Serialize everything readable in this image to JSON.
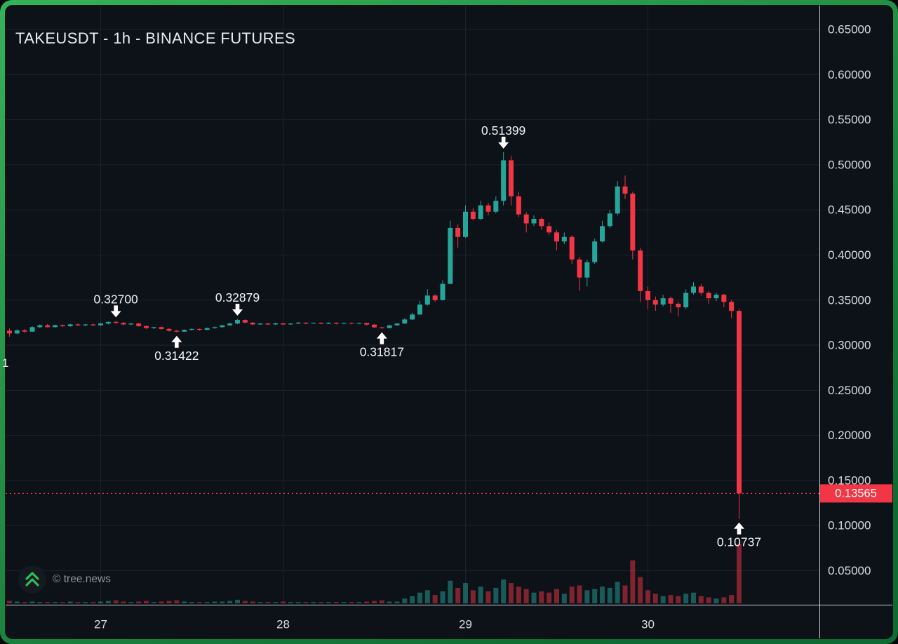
{
  "header": {
    "title": "TAKEUSDT - 1h - BINANCE FUTURES"
  },
  "watermark": {
    "text": "© tree.news",
    "icon": "tree-news-logo"
  },
  "left_edge_clipped_label": "1",
  "chart_data": {
    "type": "candlestick",
    "title": "TAKEUSDT - 1h - BINANCE FUTURES",
    "symbol": "TAKEUSDT",
    "interval": "1h",
    "exchange": "BINANCE FUTURES",
    "legend_position": "none",
    "grid": true,
    "colors": {
      "up": "#26a69a",
      "down": "#f23645",
      "last_price": "#f23645",
      "grid": "#1d222e",
      "axis_text": "#d7dae0",
      "axis_line": "#c9cdd5",
      "bg": "#0d1118",
      "annotation_text": "#f2f4f7",
      "frame_green_top": "#35b158",
      "frame_green_bottom": "#0d6c31"
    },
    "y_axis": {
      "min": 0.05,
      "max": 0.65,
      "tick_labels": [
        "0.65000",
        "0.60000",
        "0.55000",
        "0.50000",
        "0.45000",
        "0.40000",
        "0.35000",
        "0.30000",
        "0.25000",
        "0.20000",
        "0.15000",
        "0.10000",
        "0.05000"
      ]
    },
    "x_axis": {
      "tick_labels": [
        "27",
        "28",
        "29",
        "30"
      ],
      "tick_candle_indices": [
        12,
        36,
        60,
        84
      ]
    },
    "last_price": {
      "value": 0.13565,
      "label": "0.13565"
    },
    "annotations": [
      {
        "label": "0.32700",
        "price": 0.327,
        "candle": 14,
        "direction": "down"
      },
      {
        "label": "0.31422",
        "price": 0.31422,
        "candle": 22,
        "direction": "up"
      },
      {
        "label": "0.32879",
        "price": 0.32879,
        "candle": 30,
        "direction": "down"
      },
      {
        "label": "0.31817",
        "price": 0.31817,
        "candle": 49,
        "direction": "up"
      },
      {
        "label": "0.51399",
        "price": 0.51399,
        "candle": 65,
        "direction": "down"
      },
      {
        "label": "0.10737",
        "price": 0.10737,
        "candle": 96,
        "direction": "up"
      }
    ],
    "candles": [
      [
        0.316,
        0.3185,
        0.3095,
        0.313
      ],
      [
        0.313,
        0.3175,
        0.312,
        0.3165
      ],
      [
        0.3165,
        0.318,
        0.314,
        0.315
      ],
      [
        0.315,
        0.321,
        0.3145,
        0.32
      ],
      [
        0.32,
        0.323,
        0.319,
        0.322
      ],
      [
        0.322,
        0.3235,
        0.3195,
        0.32
      ],
      [
        0.32,
        0.3228,
        0.3195,
        0.3222
      ],
      [
        0.3222,
        0.323,
        0.32,
        0.321
      ],
      [
        0.321,
        0.3238,
        0.3205,
        0.323
      ],
      [
        0.323,
        0.324,
        0.321,
        0.322
      ],
      [
        0.322,
        0.3235,
        0.321,
        0.323
      ],
      [
        0.323,
        0.3238,
        0.3212,
        0.322
      ],
      [
        0.322,
        0.3245,
        0.3215,
        0.324
      ],
      [
        0.324,
        0.3262,
        0.323,
        0.3258
      ],
      [
        0.3258,
        0.327,
        0.3238,
        0.3248
      ],
      [
        0.3248,
        0.3255,
        0.3222,
        0.323
      ],
      [
        0.323,
        0.3245,
        0.322,
        0.324
      ],
      [
        0.324,
        0.3245,
        0.3205,
        0.3212
      ],
      [
        0.3212,
        0.322,
        0.318,
        0.319
      ],
      [
        0.319,
        0.3205,
        0.318,
        0.32
      ],
      [
        0.32,
        0.3205,
        0.3172,
        0.318
      ],
      [
        0.318,
        0.3188,
        0.315,
        0.316
      ],
      [
        0.316,
        0.3168,
        0.31422,
        0.315
      ],
      [
        0.315,
        0.3175,
        0.3148,
        0.317
      ],
      [
        0.317,
        0.3188,
        0.3162,
        0.318
      ],
      [
        0.318,
        0.3185,
        0.316,
        0.317
      ],
      [
        0.317,
        0.3195,
        0.3165,
        0.319
      ],
      [
        0.319,
        0.3208,
        0.3182,
        0.32
      ],
      [
        0.32,
        0.3225,
        0.3195,
        0.322
      ],
      [
        0.322,
        0.3248,
        0.3215,
        0.324
      ],
      [
        0.324,
        0.32879,
        0.3232,
        0.328
      ],
      [
        0.328,
        0.3285,
        0.3242,
        0.325
      ],
      [
        0.325,
        0.3258,
        0.3222,
        0.323
      ],
      [
        0.323,
        0.3245,
        0.3225,
        0.324
      ],
      [
        0.324,
        0.3245,
        0.3222,
        0.323
      ],
      [
        0.323,
        0.3248,
        0.3225,
        0.3242
      ],
      [
        0.3242,
        0.3246,
        0.3222,
        0.323
      ],
      [
        0.323,
        0.3244,
        0.3225,
        0.324
      ],
      [
        0.324,
        0.3255,
        0.3235,
        0.325
      ],
      [
        0.325,
        0.3254,
        0.3232,
        0.324
      ],
      [
        0.324,
        0.3252,
        0.3235,
        0.3248
      ],
      [
        0.3248,
        0.3252,
        0.3232,
        0.3238
      ],
      [
        0.3238,
        0.3252,
        0.3234,
        0.3248
      ],
      [
        0.3248,
        0.3252,
        0.323,
        0.3238
      ],
      [
        0.3238,
        0.325,
        0.3232,
        0.3246
      ],
      [
        0.3246,
        0.325,
        0.323,
        0.3238
      ],
      [
        0.3238,
        0.325,
        0.3232,
        0.3246
      ],
      [
        0.3246,
        0.3248,
        0.3218,
        0.3228
      ],
      [
        0.3228,
        0.3232,
        0.319,
        0.3198
      ],
      [
        0.3198,
        0.3205,
        0.31817,
        0.319
      ],
      [
        0.319,
        0.3225,
        0.3188,
        0.322
      ],
      [
        0.322,
        0.3245,
        0.3215,
        0.324
      ],
      [
        0.324,
        0.33,
        0.3235,
        0.3285
      ],
      [
        0.3285,
        0.336,
        0.328,
        0.334
      ],
      [
        0.334,
        0.349,
        0.3335,
        0.345
      ],
      [
        0.345,
        0.362,
        0.344,
        0.355
      ],
      [
        0.355,
        0.3565,
        0.348,
        0.35
      ],
      [
        0.35,
        0.372,
        0.3495,
        0.368
      ],
      [
        0.368,
        0.438,
        0.3675,
        0.43
      ],
      [
        0.43,
        0.434,
        0.408,
        0.42
      ],
      [
        0.42,
        0.455,
        0.419,
        0.448
      ],
      [
        0.448,
        0.452,
        0.438,
        0.44
      ],
      [
        0.44,
        0.46,
        0.439,
        0.455
      ],
      [
        0.455,
        0.458,
        0.444,
        0.448
      ],
      [
        0.448,
        0.465,
        0.446,
        0.46
      ],
      [
        0.46,
        0.51399,
        0.455,
        0.505
      ],
      [
        0.505,
        0.51,
        0.455,
        0.465
      ],
      [
        0.465,
        0.47,
        0.442,
        0.445
      ],
      [
        0.445,
        0.448,
        0.425,
        0.435
      ],
      [
        0.435,
        0.444,
        0.432,
        0.44
      ],
      [
        0.44,
        0.442,
        0.428,
        0.432
      ],
      [
        0.432,
        0.436,
        0.422,
        0.425
      ],
      [
        0.425,
        0.428,
        0.405,
        0.415
      ],
      [
        0.415,
        0.425,
        0.412,
        0.42
      ],
      [
        0.42,
        0.422,
        0.39,
        0.395
      ],
      [
        0.395,
        0.398,
        0.36,
        0.375
      ],
      [
        0.375,
        0.395,
        0.365,
        0.392
      ],
      [
        0.392,
        0.418,
        0.39,
        0.415
      ],
      [
        0.415,
        0.438,
        0.414,
        0.432
      ],
      [
        0.432,
        0.45,
        0.43,
        0.446
      ],
      [
        0.446,
        0.482,
        0.444,
        0.476
      ],
      [
        0.476,
        0.488,
        0.462,
        0.468
      ],
      [
        0.468,
        0.47,
        0.395,
        0.405
      ],
      [
        0.405,
        0.408,
        0.348,
        0.36
      ],
      [
        0.36,
        0.365,
        0.34,
        0.35
      ],
      [
        0.35,
        0.354,
        0.338,
        0.345
      ],
      [
        0.345,
        0.356,
        0.343,
        0.352
      ],
      [
        0.352,
        0.354,
        0.336,
        0.346
      ],
      [
        0.346,
        0.348,
        0.332,
        0.342
      ],
      [
        0.342,
        0.362,
        0.34,
        0.358
      ],
      [
        0.358,
        0.37,
        0.356,
        0.365
      ],
      [
        0.365,
        0.368,
        0.355,
        0.358
      ],
      [
        0.358,
        0.36,
        0.346,
        0.352
      ],
      [
        0.352,
        0.358,
        0.349,
        0.356
      ],
      [
        0.356,
        0.357,
        0.342,
        0.348
      ],
      [
        0.348,
        0.35,
        0.33,
        0.338
      ],
      [
        0.338,
        0.34,
        0.10737,
        0.13565
      ]
    ],
    "volume": [
      4,
      3,
      2,
      3,
      2,
      2,
      2,
      2,
      3,
      2,
      2,
      2,
      3,
      4,
      5,
      3,
      2,
      3,
      4,
      2,
      3,
      4,
      5,
      3,
      2,
      2,
      2,
      3,
      3,
      4,
      6,
      4,
      3,
      2,
      2,
      2,
      3,
      2,
      2,
      2,
      2,
      2,
      2,
      2,
      2,
      2,
      2,
      3,
      4,
      5,
      3,
      3,
      8,
      12,
      18,
      22,
      14,
      20,
      38,
      26,
      34,
      22,
      28,
      20,
      26,
      40,
      34,
      28,
      24,
      18,
      20,
      18,
      24,
      16,
      28,
      30,
      22,
      24,
      28,
      26,
      36,
      30,
      72,
      44,
      22,
      16,
      12,
      14,
      12,
      16,
      18,
      12,
      10,
      8,
      10,
      14,
      100
    ]
  }
}
